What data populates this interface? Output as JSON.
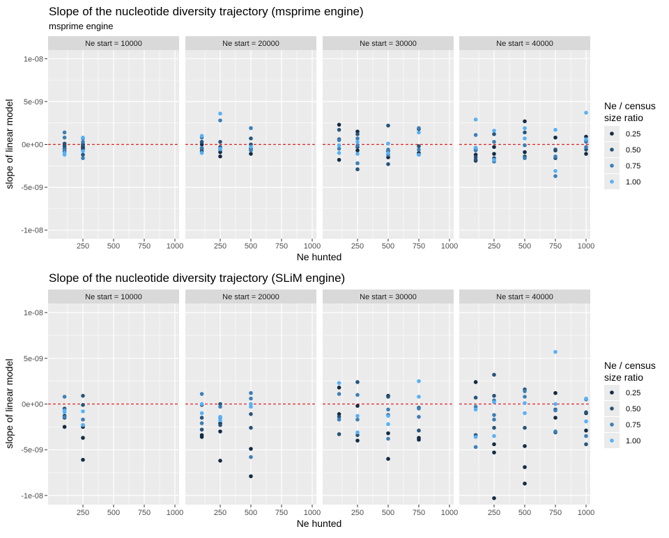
{
  "chart_data": [
    {
      "type": "scatter",
      "title": "Slope of the nucleotide diversity trajectory (msprime engine)",
      "subtitle": "msprime engine",
      "xlabel": "Ne hunted",
      "ylabel": "slope of linear model",
      "xlim": [
        0,
        1000
      ],
      "ylim": [
        -1.1e-08,
        1.1e-08
      ],
      "x_ticks": [
        250,
        500,
        750,
        1000
      ],
      "x_tick_labels": [
        "250",
        "500",
        "750",
        "1000"
      ],
      "y_ticks": [
        1e-08,
        5e-09,
        0,
        -5e-09,
        -1e-08
      ],
      "y_tick_labels": [
        "1e-08",
        "5e-09",
        "0e+00",
        "-5e-09",
        "-1e-08"
      ],
      "grid": true,
      "reference_line": {
        "y": 0,
        "color": "#e31a1c",
        "style": "dashed"
      },
      "legend": {
        "title_lines": [
          "Ne / census",
          "size ratio"
        ],
        "position": "right"
      },
      "facets": [
        {
          "label": "Ne start = 10000",
          "series": [
            {
              "name": "0.25",
              "x": [
                100,
                100,
                250,
                250,
                250
              ],
              "y": [
                0,
                -5e-10,
                -5e-10,
                -3e-10,
                0
              ]
            },
            {
              "name": "0.50",
              "x": [
                100,
                100,
                100,
                250,
                250,
                250
              ],
              "y": [
                1e-10,
                -2e-10,
                -8e-10,
                -1e-10,
                -6e-10,
                -1.2e-09
              ]
            },
            {
              "name": "0.75",
              "x": [
                100,
                100,
                100,
                250,
                250,
                250
              ],
              "y": [
                1.4e-09,
                8e-10,
                -6e-10,
                7e-10,
                3e-10,
                -1.6e-09
              ]
            },
            {
              "name": "1.00",
              "x": [
                100,
                100,
                250,
                250
              ],
              "y": [
                -1e-09,
                -1.2e-09,
                8e-10,
                -8e-10
              ]
            }
          ]
        },
        {
          "label": "Ne start = 20000",
          "series": [
            {
              "name": "0.25",
              "x": [
                100,
                100,
                250,
                250,
                500,
                500
              ],
              "y": [
                0,
                -5e-10,
                -9e-10,
                -1.4e-09,
                -1.1e-09,
                -5e-10
              ]
            },
            {
              "name": "0.50",
              "x": [
                100,
                100,
                250,
                250,
                500,
                500
              ],
              "y": [
                3e-10,
                -8e-10,
                3e-10,
                -3e-10,
                7e-10,
                0
              ]
            },
            {
              "name": "0.75",
              "x": [
                100,
                100,
                250,
                250,
                500,
                500
              ],
              "y": [
                8e-10,
                -4e-10,
                2.8e-09,
                -6e-10,
                1.9e-09,
                -7e-10
              ]
            },
            {
              "name": "1.00",
              "x": [
                100,
                100,
                250,
                250,
                500
              ],
              "y": [
                1e-09,
                -1e-09,
                3.6e-09,
                -5e-10,
                -3e-10
              ]
            }
          ]
        },
        {
          "label": "Ne start = 30000",
          "series": [
            {
              "name": "0.25",
              "x": [
                100,
                100,
                250,
                250,
                500,
                500,
                750,
                750
              ],
              "y": [
                2.3e-09,
                -1.8e-09,
                1.5e-09,
                -7e-10,
                -1.5e-09,
                -8e-10,
                1.8e-09,
                -1e-09
              ]
            },
            {
              "name": "0.50",
              "x": [
                100,
                100,
                250,
                250,
                250,
                500,
                500,
                750,
                750
              ],
              "y": [
                1.7e-09,
                6e-10,
                1.2e-09,
                -3e-10,
                -2.9e-09,
                2.2e-09,
                -2.3e-09,
                -2e-10,
                -1.2e-09
              ]
            },
            {
              "name": "0.75",
              "x": [
                100,
                100,
                250,
                250,
                250,
                500,
                500,
                750,
                750
              ],
              "y": [
                5e-10,
                -5e-10,
                7e-10,
                -2.2e-09,
                -1e-10,
                -6e-10,
                -1.2e-09,
                1.9e-09,
                -6e-10
              ]
            },
            {
              "name": "1.00",
              "x": [
                100,
                100,
                250,
                250,
                500,
                500,
                750,
                750
              ],
              "y": [
                -1e-10,
                -1e-09,
                3e-10,
                -1.1e-09,
                1e-10,
                -1e-09,
                1.4e-09,
                -1.2e-09
              ]
            }
          ]
        },
        {
          "label": "Ne start = 40000",
          "series": [
            {
              "name": "0.25",
              "x": [
                100,
                100,
                100,
                250,
                250,
                500,
                500,
                750,
                750,
                1000,
                1000
              ],
              "y": [
                -1.2e-09,
                -1.9e-09,
                -6e-10,
                -1.1e-09,
                -3e-10,
                2.7e-09,
                -9e-10,
                8e-10,
                -7e-10,
                -1.1e-09,
                9e-10
              ]
            },
            {
              "name": "0.50",
              "x": [
                100,
                100,
                100,
                250,
                250,
                500,
                500,
                750,
                750,
                1000,
                1000
              ],
              "y": [
                -4e-10,
                -1.5e-09,
                -1.8e-09,
                1.2e-09,
                -1.6e-09,
                1.4e-09,
                -1.4e-09,
                -6e-10,
                -1.6e-09,
                -6e-10,
                4e-10
              ]
            },
            {
              "name": "0.75",
              "x": [
                100,
                100,
                250,
                250,
                500,
                500,
                750,
                750,
                1000,
                1000
              ],
              "y": [
                1.1e-09,
                -7e-10,
                3e-10,
                -2e-09,
                -1e-10,
                -1.6e-09,
                -3.7e-09,
                -1.4e-09,
                3e-10,
                -3e-10
              ]
            },
            {
              "name": "1.00",
              "x": [
                100,
                100,
                250,
                250,
                500,
                500,
                750,
                750,
                1000,
                1000
              ],
              "y": [
                2.9e-09,
                -4e-10,
                1.6e-09,
                -1.8e-09,
                1.9e-09,
                7e-10,
                1.7e-09,
                -3.1e-09,
                3.7e-09,
                6e-10
              ]
            }
          ]
        }
      ]
    },
    {
      "type": "scatter",
      "title": "Slope of the nucleotide diversity trajectory (SLiM engine)",
      "subtitle": "",
      "xlabel": "Ne hunted",
      "ylabel": "slope of linear model",
      "xlim": [
        0,
        1000
      ],
      "ylim": [
        -1.1e-08,
        1.1e-08
      ],
      "x_ticks": [
        250,
        500,
        750,
        1000
      ],
      "x_tick_labels": [
        "250",
        "500",
        "750",
        "1000"
      ],
      "y_ticks": [
        1e-08,
        5e-09,
        0,
        -5e-09,
        -1e-08
      ],
      "y_tick_labels": [
        "1e-08",
        "5e-09",
        "0e+00",
        "-5e-09",
        "-1e-08"
      ],
      "grid": true,
      "reference_line": {
        "y": 0,
        "color": "#e31a1c",
        "style": "dashed"
      },
      "legend": {
        "title_lines": [
          "Ne / census",
          "size ratio"
        ],
        "position": "right"
      },
      "facets": [
        {
          "label": "Ne start = 10000",
          "series": [
            {
              "name": "0.25",
              "x": [
                100,
                100,
                250,
                250,
                250
              ],
              "y": [
                -2.5e-09,
                -1.3e-09,
                -6.1e-09,
                -3.7e-09,
                -2.5e-09
              ]
            },
            {
              "name": "0.50",
              "x": [
                100,
                100,
                250,
                250
              ],
              "y": [
                -1.5e-09,
                -5e-10,
                9e-10,
                -1e-10
              ]
            },
            {
              "name": "0.75",
              "x": [
                100,
                100,
                250,
                250
              ],
              "y": [
                8e-10,
                -1.4e-09,
                -1.7e-09,
                -2.3e-09
              ]
            },
            {
              "name": "1.00",
              "x": [
                100,
                100,
                250,
                250
              ],
              "y": [
                -7e-10,
                -9e-10,
                -8e-10,
                -2.3e-09
              ]
            }
          ]
        },
        {
          "label": "Ne start = 20000",
          "series": [
            {
              "name": "0.25",
              "x": [
                100,
                100,
                250,
                250,
                250,
                500,
                500
              ],
              "y": [
                -3.4e-09,
                -3.6e-09,
                -6.2e-09,
                -3e-09,
                -2.1e-09,
                -4.9e-09,
                -7.9e-09
              ]
            },
            {
              "name": "0.50",
              "x": [
                100,
                100,
                100,
                250,
                250,
                500,
                500
              ],
              "y": [
                -2.8e-09,
                -1.5e-09,
                -1e-10,
                -2.3e-09,
                0,
                -2.6e-09,
                -1.1e-09
              ]
            },
            {
              "name": "0.75",
              "x": [
                100,
                100,
                250,
                250,
                500,
                500,
                500
              ],
              "y": [
                1.1e-09,
                -2.1e-09,
                -1.5e-09,
                -3e-10,
                1.2e-09,
                -5.8e-09,
                6e-10
              ]
            },
            {
              "name": "1.00",
              "x": [
                100,
                100,
                250,
                250,
                500,
                500
              ],
              "y": [
                0,
                -1e-09,
                -1.4e-09,
                -1.8e-09,
                -3e-10,
                0
              ]
            }
          ]
        },
        {
          "label": "Ne start = 30000",
          "series": [
            {
              "name": "0.25",
              "x": [
                100,
                100,
                250,
                250,
                500,
                500,
                500,
                750,
                750
              ],
              "y": [
                1.8e-09,
                -1.1e-09,
                -4e-09,
                -2e-10,
                -3.2e-09,
                -6e-09,
                9e-10,
                -3.7e-09,
                -3.9e-09
              ]
            },
            {
              "name": "0.50",
              "x": [
                100,
                100,
                250,
                250,
                500,
                500,
                750,
                750
              ],
              "y": [
                -3.3e-09,
                -1.4e-09,
                -3.4e-09,
                2.4e-09,
                -1.2e-09,
                8e-10,
                -4e-10,
                -2.9e-09
              ]
            },
            {
              "name": "0.75",
              "x": [
                100,
                100,
                250,
                250,
                500,
                500,
                750,
                750
              ],
              "y": [
                1.1e-09,
                -1.7e-09,
                1e-09,
                -1.7e-09,
                -3.8e-09,
                -6e-10,
                -5e-10,
                -1.4e-09
              ]
            },
            {
              "name": "1.00",
              "x": [
                100,
                250,
                250,
                500,
                500,
                750,
                750
              ],
              "y": [
                2.3e-09,
                -1.3e-09,
                -3.1e-09,
                -2.2e-09,
                -1.3e-09,
                2.5e-09,
                8e-10
              ]
            }
          ]
        },
        {
          "label": "Ne start = 40000",
          "series": [
            {
              "name": "0.25",
              "x": [
                100,
                250,
                250,
                250,
                500,
                500,
                500,
                750,
                750,
                1000,
                1000
              ],
              "y": [
                2.4e-09,
                -4.4e-09,
                -5.3e-09,
                -1.03e-08,
                -4.6e-09,
                -6.9e-09,
                -8.7e-09,
                1.2e-09,
                -1.5e-09,
                -2.9e-09,
                -1e-09
              ]
            },
            {
              "name": "0.50",
              "x": [
                100,
                100,
                250,
                250,
                250,
                500,
                500,
                750,
                750,
                1000,
                1000
              ],
              "y": [
                7e-10,
                -3.4e-09,
                3.2e-09,
                9e-10,
                -2.6e-09,
                1.6e-09,
                -2.6e-09,
                -3.1e-09,
                -6e-10,
                -4.4e-09,
                -9e-10
              ]
            },
            {
              "name": "0.75",
              "x": [
                100,
                100,
                250,
                250,
                250,
                500,
                500,
                750,
                750,
                1000,
                1000
              ],
              "y": [
                -4.7e-09,
                -3e-10,
                4e-10,
                -1.7e-09,
                -1.2e-09,
                1.4e-09,
                8e-10,
                -3e-09,
                -7e-10,
                -3.5e-09,
                5e-10
              ]
            },
            {
              "name": "1.00",
              "x": [
                100,
                100,
                250,
                250,
                500,
                500,
                750,
                750,
                1000,
                1000
              ],
              "y": [
                -6e-10,
                -3.6e-09,
                2e-10,
                -3.5e-09,
                1e-10,
                -1e-09,
                5.7e-09,
                0,
                6e-10,
                -1.9e-09
              ]
            }
          ]
        }
      ]
    }
  ],
  "colors": {
    "panel_bg": "#ebebeb",
    "strip_bg": "#d9d9d9",
    "grid": "#ffffff",
    "axis_text": "#4d4d4d",
    "reference_line": "#e31a1c",
    "series": {
      "0.25": "#132b43",
      "0.50": "#28547a",
      "0.75": "#3d7fb5",
      "1.00": "#56b1f7"
    }
  }
}
